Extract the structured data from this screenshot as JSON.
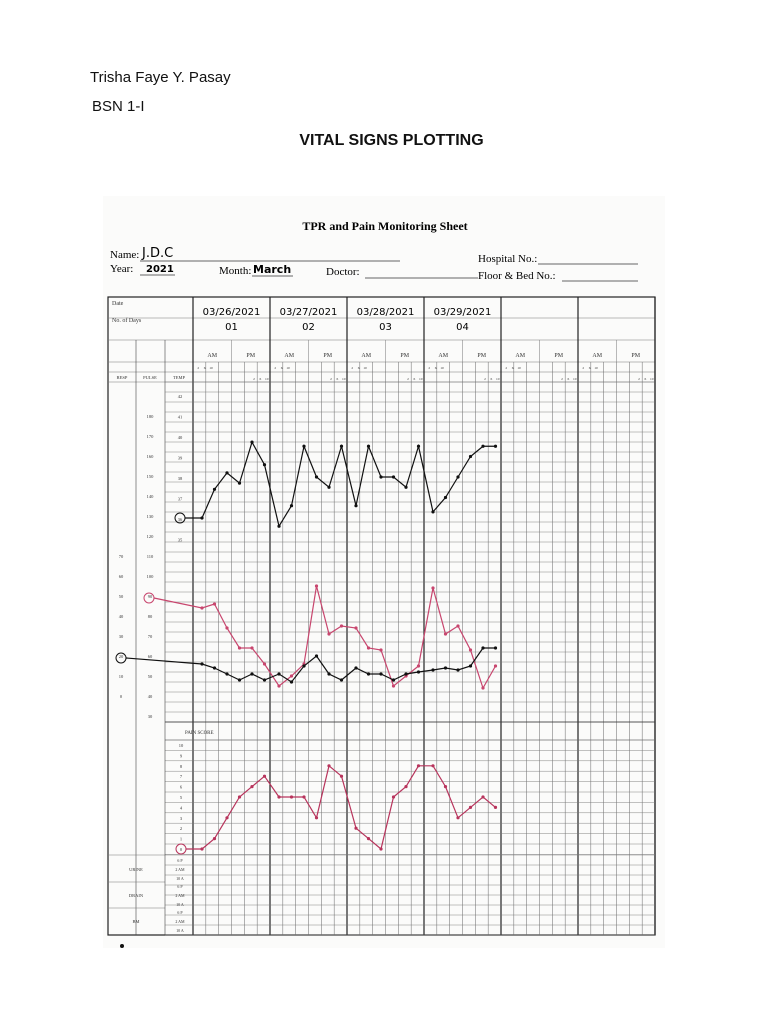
{
  "student": {
    "name": "Trisha Faye Y. Pasay",
    "section": "BSN 1-I"
  },
  "page_title": "VITAL SIGNS PLOTTING",
  "sheet": {
    "title": "TPR and Pain Monitoring Sheet",
    "name_label": "Name:",
    "name_value": "J.D.C",
    "year_label": "Year:",
    "year_value": "2021",
    "month_label": "Month:",
    "month_value": "March",
    "doctor_label": "Doctor:",
    "hospital_label": "Hospital No.:",
    "floor_label": "Floor & Bed No.:",
    "date_label": "Date",
    "days_label": "No. of Days",
    "resp_header": "RESP",
    "pulse_header": "PULSE",
    "temp_header": "TEMP",
    "pain_header": "PAIN SCORE",
    "am": "AM",
    "pm": "PM",
    "times_am": [
      "2",
      "6",
      "10"
    ],
    "times_pm": [
      "2",
      "6",
      "10"
    ],
    "days": [
      {
        "date": "03/26/2021",
        "day": "01"
      },
      {
        "date": "03/27/2021",
        "day": "02"
      },
      {
        "date": "03/28/2021",
        "day": "03"
      },
      {
        "date": "03/29/2021",
        "day": "04"
      },
      {
        "date": "",
        "day": ""
      },
      {
        "date": "",
        "day": ""
      }
    ],
    "bottom_rows": [
      {
        "label": "URINE",
        "shifts": [
          "6 P",
          "2 AM",
          "10 A"
        ]
      },
      {
        "label": "DRAIN",
        "shifts": [
          "6 P",
          "2 AM",
          "10 A"
        ]
      },
      {
        "label": "BM",
        "shifts": [
          "6 P",
          "2 AM",
          "10 A"
        ]
      }
    ]
  },
  "chart_data": [
    {
      "type": "line",
      "title": "TPR and Pain Monitoring Sheet",
      "x_labels": [
        "03/26 2AM",
        "03/26 6AM",
        "03/26 10AM",
        "03/26 2PM",
        "03/26 6PM",
        "03/26 10PM",
        "03/27 2AM",
        "03/27 6AM",
        "03/27 10AM",
        "03/27 2PM",
        "03/27 6PM",
        "03/27 10PM",
        "03/28 2AM",
        "03/28 6AM",
        "03/28 10AM",
        "03/28 2PM",
        "03/28 6PM",
        "03/28 10PM",
        "03/29 2AM",
        "03/29 6AM",
        "03/29 10AM",
        "03/29 2PM",
        "03/29 6PM",
        "03/29 10PM"
      ],
      "axes": {
        "temp_ticks": [
          "42",
          "41",
          "40",
          "39",
          "38",
          "37",
          "36",
          "35"
        ],
        "pulse_ticks": [
          "180",
          "170",
          "160",
          "150",
          "140",
          "130",
          "120",
          "110",
          "100",
          "90",
          "80",
          "70",
          "60",
          "50",
          "40",
          "30"
        ],
        "resp_ticks": [
          "70",
          "60",
          "50",
          "40",
          "30",
          "20",
          "10",
          "0"
        ],
        "pain_ticks": [
          "10",
          "9",
          "8",
          "7",
          "6",
          "5",
          "4",
          "3",
          "2",
          "1",
          "0"
        ]
      },
      "series": [
        {
          "key": "temp",
          "color": "#111111",
          "baseline": 36,
          "values": [
            36.0,
            37.4,
            38.2,
            37.7,
            39.7,
            38.6,
            35.6,
            36.6,
            39.5,
            38.0,
            37.5,
            39.5,
            36.6,
            39.5,
            38.0,
            38.0,
            37.5,
            39.5,
            36.3,
            37.0,
            38.0,
            39.0,
            39.5,
            39.5
          ]
        },
        {
          "key": "pulse",
          "color": "#c8466e",
          "baseline": 90,
          "values": [
            85,
            87,
            75,
            65,
            65,
            57,
            46,
            51,
            57,
            96,
            72,
            76,
            75,
            65,
            64,
            46,
            51,
            56,
            95,
            72,
            76,
            64,
            45,
            56
          ]
        },
        {
          "key": "resp",
          "color": "#111111",
          "baseline": 20,
          "values": [
            17,
            15,
            12,
            9,
            12,
            9,
            12,
            8,
            16,
            21,
            12,
            9,
            15,
            12,
            12,
            9,
            12,
            13,
            14,
            15,
            14,
            16,
            25,
            25
          ]
        },
        {
          "key": "pain",
          "color": "#b8345c",
          "baseline": 0,
          "values": [
            0,
            1,
            3,
            5,
            6,
            7,
            5,
            5,
            5,
            3,
            8,
            7,
            2,
            1,
            0,
            5,
            6,
            8,
            8,
            6,
            3,
            4,
            5,
            4
          ]
        }
      ]
    }
  ]
}
